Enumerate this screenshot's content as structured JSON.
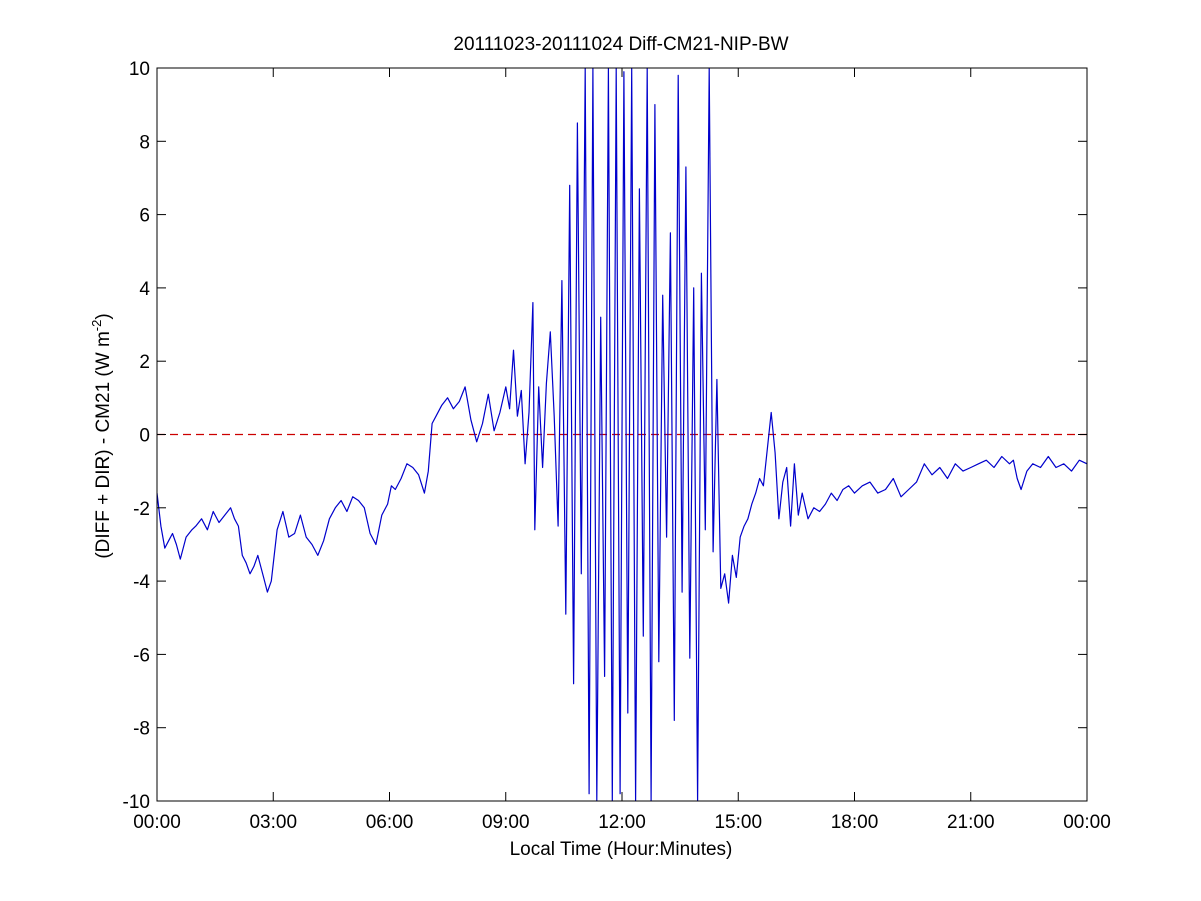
{
  "chart_data": {
    "type": "line",
    "title": "20111023-20111024 Diff-CM21-NIP-BW",
    "xlabel": "Local Time (Hour:Minutes)",
    "ylabel_main": "(DIFF + DIR) - CM21 (W m",
    "ylabel_sup": "-2",
    "ylabel_close": ")",
    "xlim": [
      0,
      24
    ],
    "ylim": [
      -10,
      10
    ],
    "x_ticks": [
      0,
      3,
      6,
      9,
      12,
      15,
      18,
      21,
      24
    ],
    "x_tick_labels": [
      "00:00",
      "03:00",
      "06:00",
      "09:00",
      "12:00",
      "15:00",
      "18:00",
      "21:00",
      "00:00"
    ],
    "y_ticks": [
      -10,
      -8,
      -6,
      -4,
      -2,
      0,
      2,
      4,
      6,
      8,
      10
    ],
    "y_tick_labels": [
      "-10",
      "-8",
      "-6",
      "-4",
      "-2",
      "0",
      "2",
      "4",
      "6",
      "8",
      "10"
    ],
    "grid": false,
    "reference_line": {
      "y": 0,
      "color": "#cc0000",
      "style": "dashed"
    },
    "series": [
      {
        "color": "#0000cc",
        "x": [
          0.0,
          0.1,
          0.2,
          0.3,
          0.4,
          0.5,
          0.6,
          0.75,
          0.9,
          1.0,
          1.15,
          1.3,
          1.45,
          1.6,
          1.75,
          1.9,
          2.0,
          2.1,
          2.2,
          2.3,
          2.4,
          2.5,
          2.6,
          2.75,
          2.85,
          2.95,
          3.1,
          3.25,
          3.4,
          3.55,
          3.7,
          3.85,
          4.0,
          4.15,
          4.3,
          4.45,
          4.6,
          4.75,
          4.9,
          5.05,
          5.2,
          5.35,
          5.5,
          5.65,
          5.8,
          5.95,
          6.05,
          6.15,
          6.3,
          6.45,
          6.6,
          6.75,
          6.9,
          7.0,
          7.1,
          7.2,
          7.35,
          7.5,
          7.65,
          7.8,
          7.95,
          8.1,
          8.25,
          8.4,
          8.55,
          8.7,
          8.85,
          9.0,
          9.1,
          9.2,
          9.3,
          9.4,
          9.5,
          9.6,
          9.7,
          9.75,
          9.85,
          9.95,
          10.05,
          10.15,
          10.25,
          10.35,
          10.45,
          10.55,
          10.65,
          10.75,
          10.85,
          10.95,
          11.05,
          11.15,
          11.25,
          11.35,
          11.45,
          11.55,
          11.65,
          11.75,
          11.85,
          11.95,
          12.05,
          12.15,
          12.25,
          12.35,
          12.45,
          12.55,
          12.65,
          12.75,
          12.85,
          12.95,
          13.05,
          13.15,
          13.25,
          13.35,
          13.45,
          13.55,
          13.65,
          13.75,
          13.85,
          13.95,
          14.05,
          14.15,
          14.25,
          14.35,
          14.45,
          14.55,
          14.65,
          14.75,
          14.85,
          14.95,
          15.05,
          15.15,
          15.25,
          15.35,
          15.45,
          15.55,
          15.65,
          15.75,
          15.85,
          15.95,
          16.05,
          16.15,
          16.25,
          16.35,
          16.45,
          16.55,
          16.65,
          16.8,
          16.95,
          17.1,
          17.25,
          17.4,
          17.55,
          17.7,
          17.85,
          18.0,
          18.2,
          18.4,
          18.6,
          18.8,
          19.0,
          19.2,
          19.4,
          19.6,
          19.8,
          20.0,
          20.2,
          20.4,
          20.6,
          20.8,
          21.0,
          21.2,
          21.4,
          21.6,
          21.8,
          22.0,
          22.1,
          22.2,
          22.3,
          22.45,
          22.6,
          22.8,
          23.0,
          23.2,
          23.4,
          23.6,
          23.8,
          24.0
        ],
        "y": [
          -1.6,
          -2.5,
          -3.1,
          -2.9,
          -2.7,
          -3.0,
          -3.4,
          -2.8,
          -2.6,
          -2.5,
          -2.3,
          -2.6,
          -2.1,
          -2.4,
          -2.2,
          -2.0,
          -2.3,
          -2.5,
          -3.3,
          -3.5,
          -3.8,
          -3.6,
          -3.3,
          -3.9,
          -4.3,
          -4.0,
          -2.6,
          -2.1,
          -2.8,
          -2.7,
          -2.2,
          -2.8,
          -3.0,
          -3.3,
          -2.9,
          -2.3,
          -2.0,
          -1.8,
          -2.1,
          -1.7,
          -1.8,
          -2.0,
          -2.7,
          -3.0,
          -2.2,
          -1.9,
          -1.4,
          -1.5,
          -1.2,
          -0.8,
          -0.9,
          -1.1,
          -1.6,
          -1.0,
          0.3,
          0.5,
          0.8,
          1.0,
          0.7,
          0.9,
          1.3,
          0.4,
          -0.2,
          0.3,
          1.1,
          0.1,
          0.6,
          1.3,
          0.7,
          2.3,
          0.5,
          1.2,
          -0.8,
          0.6,
          3.6,
          -2.6,
          1.3,
          -0.9,
          1.4,
          2.8,
          0.5,
          -2.5,
          4.2,
          -4.9,
          6.8,
          -6.8,
          8.5,
          -3.8,
          10.0,
          -9.8,
          10.0,
          -10.0,
          3.2,
          -6.6,
          10.0,
          -10.0,
          10.0,
          -9.8,
          9.9,
          -7.6,
          10.0,
          -10.0,
          6.7,
          -5.5,
          10.0,
          -10.0,
          9.0,
          -6.2,
          3.8,
          -2.8,
          5.5,
          -7.8,
          9.8,
          -4.3,
          7.3,
          -6.1,
          4.0,
          -10.0,
          4.4,
          -2.6,
          10.0,
          -3.2,
          1.5,
          -4.2,
          -3.8,
          -4.6,
          -3.3,
          -3.9,
          -2.8,
          -2.5,
          -2.3,
          -1.9,
          -1.6,
          -1.2,
          -1.4,
          -0.4,
          0.6,
          -0.5,
          -2.3,
          -1.3,
          -0.9,
          -2.5,
          -0.8,
          -2.2,
          -1.6,
          -2.3,
          -2.0,
          -2.1,
          -1.9,
          -1.6,
          -1.8,
          -1.5,
          -1.4,
          -1.6,
          -1.4,
          -1.3,
          -1.6,
          -1.5,
          -1.2,
          -1.7,
          -1.5,
          -1.3,
          -0.8,
          -1.1,
          -0.9,
          -1.2,
          -0.8,
          -1.0,
          -0.9,
          -0.8,
          -0.7,
          -0.9,
          -0.6,
          -0.8,
          -0.7,
          -1.2,
          -1.5,
          -1.0,
          -0.8,
          -0.9,
          -0.6,
          -0.9,
          -0.8,
          -1.0,
          -0.7,
          -0.8
        ]
      }
    ]
  }
}
